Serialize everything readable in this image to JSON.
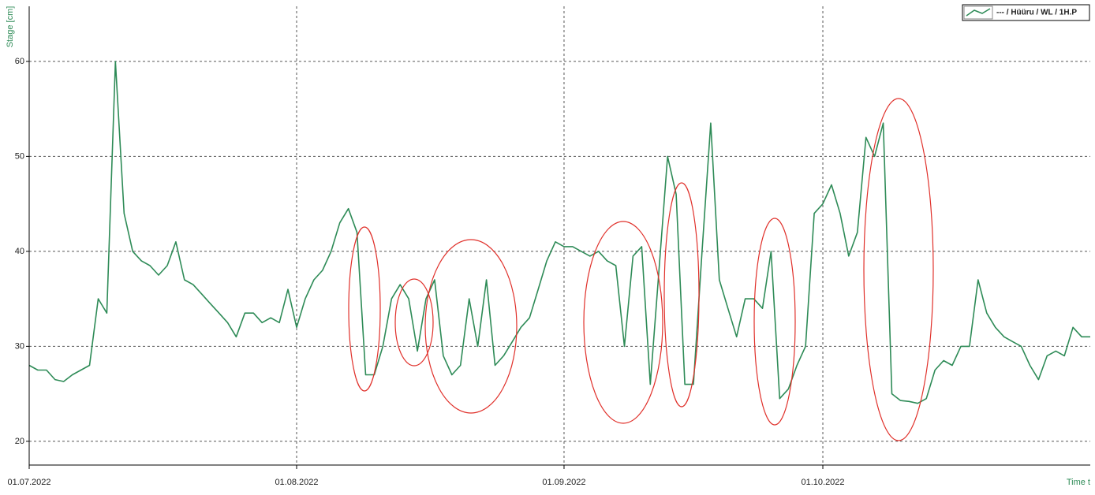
{
  "chart_data": {
    "type": "line",
    "y_label": "Stage [cm]",
    "x_label": "Time t",
    "x": [
      "01.07.2022",
      "02.07.2022",
      "03.07.2022",
      "04.07.2022",
      "05.07.2022",
      "06.07.2022",
      "07.07.2022",
      "08.07.2022",
      "09.07.2022",
      "10.07.2022",
      "11.07.2022",
      "12.07.2022",
      "13.07.2022",
      "14.07.2022",
      "15.07.2022",
      "16.07.2022",
      "17.07.2022",
      "18.07.2022",
      "19.07.2022",
      "20.07.2022",
      "21.07.2022",
      "22.07.2022",
      "23.07.2022",
      "24.07.2022",
      "25.07.2022",
      "26.07.2022",
      "27.07.2022",
      "28.07.2022",
      "29.07.2022",
      "30.07.2022",
      "31.07.2022",
      "01.08.2022",
      "02.08.2022",
      "03.08.2022",
      "04.08.2022",
      "05.08.2022",
      "06.08.2022",
      "07.08.2022",
      "08.08.2022",
      "09.08.2022",
      "10.08.2022",
      "11.08.2022",
      "12.08.2022",
      "13.08.2022",
      "14.08.2022",
      "15.08.2022",
      "16.08.2022",
      "17.08.2022",
      "18.08.2022",
      "19.08.2022",
      "20.08.2022",
      "21.08.2022",
      "22.08.2022",
      "23.08.2022",
      "24.08.2022",
      "25.08.2022",
      "26.08.2022",
      "27.08.2022",
      "28.08.2022",
      "29.08.2022",
      "30.08.2022",
      "31.08.2022",
      "01.09.2022",
      "02.09.2022",
      "03.09.2022",
      "04.09.2022",
      "05.09.2022",
      "06.09.2022",
      "07.09.2022",
      "08.09.2022",
      "09.09.2022",
      "10.09.2022",
      "11.09.2022",
      "12.09.2022",
      "13.09.2022",
      "14.09.2022",
      "15.09.2022",
      "16.09.2022",
      "17.09.2022",
      "18.09.2022",
      "19.09.2022",
      "20.09.2022",
      "21.09.2022",
      "22.09.2022",
      "23.09.2022",
      "24.09.2022",
      "25.09.2022",
      "26.09.2022",
      "27.09.2022",
      "28.09.2022",
      "29.09.2022",
      "30.09.2022",
      "01.10.2022",
      "02.10.2022",
      "03.10.2022",
      "04.10.2022",
      "05.10.2022",
      "06.10.2022",
      "07.10.2022",
      "08.10.2022",
      "09.10.2022",
      "10.10.2022",
      "11.10.2022",
      "12.10.2022",
      "13.10.2022",
      "14.10.2022",
      "15.10.2022",
      "16.10.2022",
      "17.10.2022",
      "18.10.2022",
      "19.10.2022",
      "20.10.2022",
      "21.10.2022",
      "22.10.2022",
      "23.10.2022",
      "24.10.2022",
      "25.10.2022",
      "26.10.2022",
      "27.10.2022",
      "28.10.2022",
      "29.10.2022",
      "30.10.2022",
      "31.10.2022",
      "01.11.2022"
    ],
    "series": [
      {
        "name": "--- / Hüüru / WL / 1H.P",
        "color": "#2e8b57",
        "values": [
          28,
          27.5,
          27.5,
          26.5,
          26.3,
          27,
          27.5,
          28,
          35,
          33.5,
          60,
          44,
          40,
          39,
          38.5,
          37.5,
          38.5,
          41,
          37,
          36.5,
          35.5,
          34.5,
          33.5,
          32.5,
          31,
          33.5,
          33.5,
          32.5,
          33,
          32.5,
          36,
          32,
          35,
          37,
          38,
          40,
          43,
          44.5,
          42,
          27,
          27,
          30,
          35,
          36.5,
          35,
          29.5,
          35,
          37,
          29,
          27,
          28,
          35,
          30,
          37,
          28,
          29,
          30.5,
          32,
          33,
          36,
          39,
          41,
          40.5,
          40.5,
          40,
          39.5,
          40,
          39,
          38.5,
          30,
          39.5,
          40.5,
          26,
          38,
          50,
          46,
          26,
          26,
          40,
          53.5,
          37,
          34,
          31,
          35,
          35,
          34,
          40,
          24.5,
          25.5,
          28,
          30,
          44,
          45,
          47,
          44,
          39.5,
          42,
          52,
          50,
          53.5,
          25,
          24.3,
          24.2,
          24,
          24.5,
          27.5,
          28.5,
          28,
          30,
          30,
          37,
          33.5,
          32,
          31,
          30.5,
          30,
          28,
          26.5,
          29,
          29.5,
          29,
          32,
          31,
          31
        ]
      }
    ],
    "xlim": [
      "01.07.2022",
      "01.11.2022"
    ],
    "xticks": [
      "01.07.2022",
      "01.08.2022",
      "01.09.2022",
      "01.10.2022"
    ],
    "ylim": [
      17.5,
      65.8
    ],
    "yticks": [
      20,
      30,
      40,
      50,
      60
    ],
    "grid": true
  }
}
